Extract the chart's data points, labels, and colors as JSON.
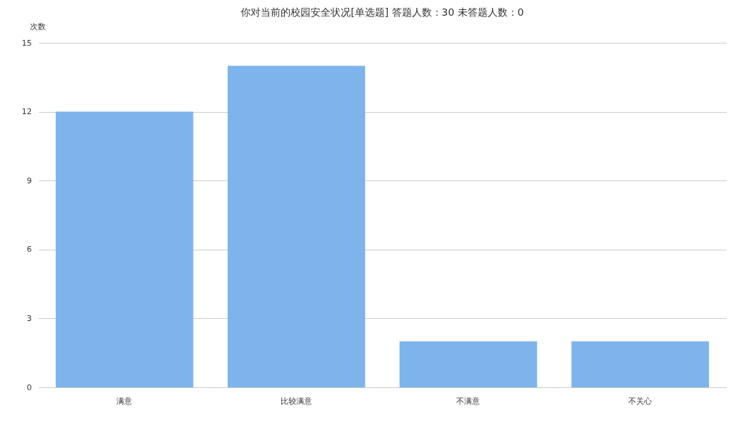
{
  "chart_data": {
    "type": "bar",
    "title": "你对当前的校园安全状况[单选题]  答题人数：30  未答题人数：0",
    "ylabel": "次数",
    "categories": [
      "满意",
      "比较满意",
      "不满意",
      "不关心"
    ],
    "series": [
      {
        "color": "#7cb4eb",
        "values": [
          12,
          14,
          2,
          2
        ]
      }
    ],
    "ylim": [
      0,
      15
    ],
    "yticks": [
      0,
      3,
      6,
      9,
      12,
      15
    ],
    "grid": "y",
    "legend": false
  }
}
